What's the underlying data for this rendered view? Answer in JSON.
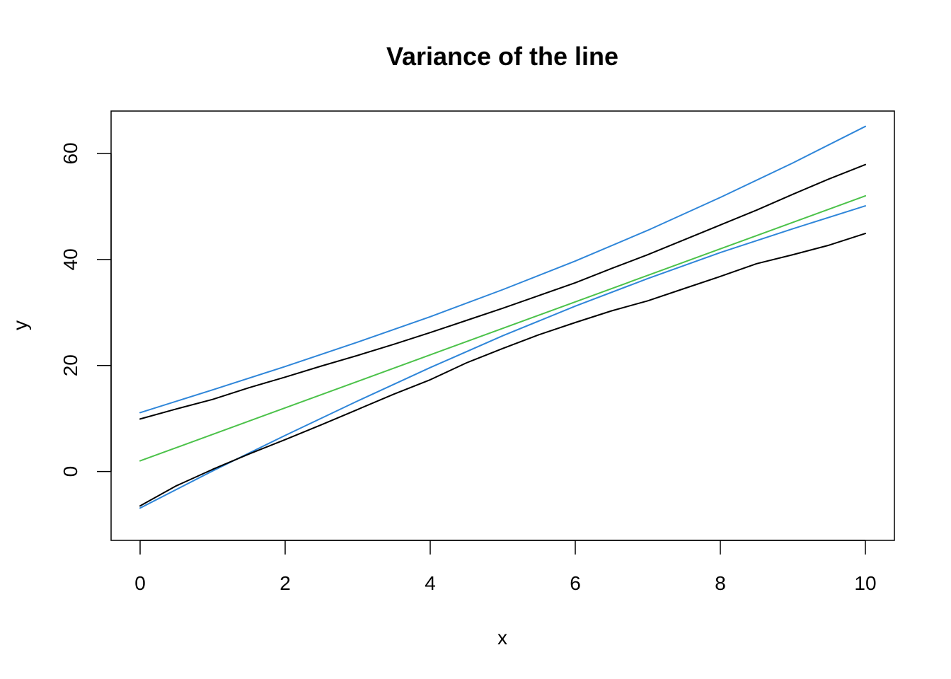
{
  "chart_data": {
    "type": "line",
    "title": "Variance of the line",
    "xlabel": "x",
    "ylabel": "y",
    "xlim": [
      -0.4,
      10.4
    ],
    "ylim": [
      -13,
      68
    ],
    "x_ticks": [
      0,
      2,
      4,
      6,
      8,
      10
    ],
    "y_ticks": [
      0,
      20,
      40,
      60
    ],
    "grid": false,
    "series": [
      {
        "color": "#2F86D9",
        "x": [
          0,
          1,
          2,
          3,
          4,
          5,
          6,
          7,
          8,
          9,
          10
        ],
        "y": [
          11.1,
          15.4,
          19.8,
          24.4,
          29.2,
          34.3,
          39.7,
          45.5,
          51.7,
          58.2,
          65.1
        ]
      },
      {
        "color": "#000000",
        "x": [
          0,
          0.5,
          1,
          1.5,
          2,
          2.5,
          3,
          3.5,
          4,
          4.5,
          5,
          5.5,
          6,
          6.5,
          7,
          7.5,
          8,
          8.5,
          9,
          9.5,
          10
        ],
        "y": [
          9.9,
          11.8,
          13.6,
          15.8,
          17.8,
          19.9,
          21.9,
          24.0,
          26.2,
          28.5,
          30.8,
          33.2,
          35.6,
          38.3,
          40.9,
          43.7,
          46.5,
          49.3,
          52.3,
          55.2,
          57.9
        ]
      },
      {
        "color": "#4CC24A",
        "x": [
          0,
          10
        ],
        "y": [
          2.0,
          52.0
        ]
      },
      {
        "color": "#2F86D9",
        "x": [
          0,
          1,
          2,
          3,
          4,
          5,
          6,
          7,
          8,
          9,
          10
        ],
        "y": [
          -6.9,
          0.1,
          6.8,
          13.3,
          19.6,
          25.6,
          31.2,
          36.4,
          41.3,
          45.8,
          50.1
        ]
      },
      {
        "color": "#000000",
        "x": [
          0,
          0.5,
          1,
          1.5,
          2,
          2.5,
          3,
          3.5,
          4,
          4.5,
          5,
          5.5,
          6,
          6.5,
          7,
          7.5,
          8,
          8.5,
          9,
          9.5,
          10
        ],
        "y": [
          -6.5,
          -2.7,
          0.4,
          3.3,
          6.0,
          8.8,
          11.7,
          14.6,
          17.3,
          20.5,
          23.2,
          25.8,
          28.1,
          30.3,
          32.2,
          34.5,
          36.8,
          39.2,
          40.9,
          42.7,
          44.9
        ]
      }
    ]
  }
}
